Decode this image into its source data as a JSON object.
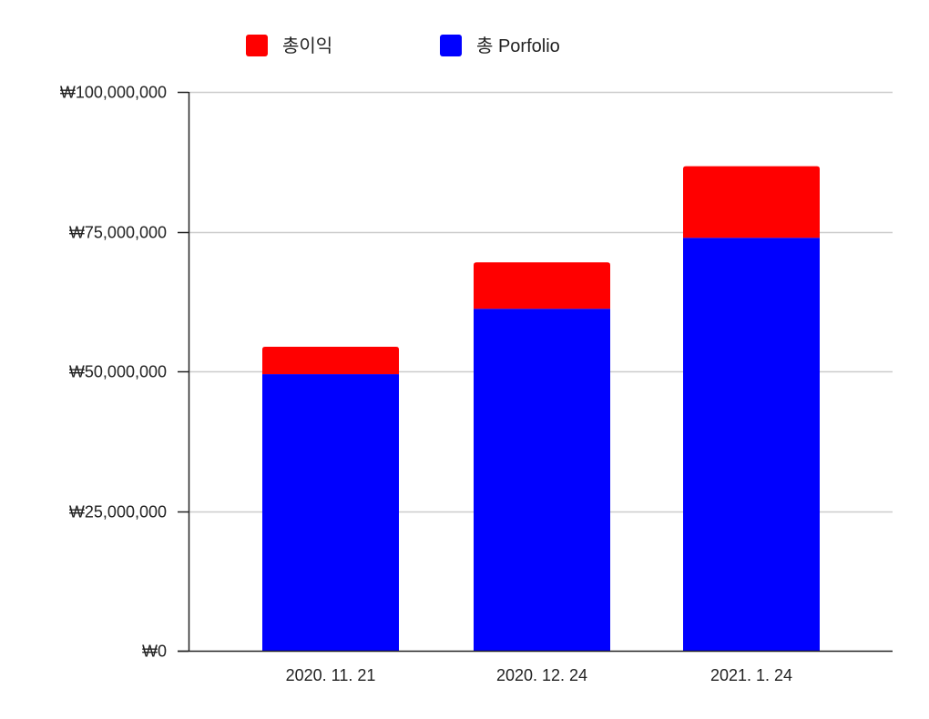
{
  "chart_data": {
    "type": "bar",
    "stacked": true,
    "categories": [
      "2020. 11. 21",
      "2020. 12. 24",
      "2021. 1. 24"
    ],
    "series": [
      {
        "name": "총 Porfolio",
        "color": "#0000ff",
        "values": [
          49500000,
          61200000,
          73900000
        ]
      },
      {
        "name": "총이익",
        "color": "#ff0000",
        "values": [
          4900000,
          8300000,
          12800000
        ]
      }
    ],
    "legend_order": [
      1,
      0
    ],
    "legend_position": "top",
    "ylim": [
      0,
      100000000
    ],
    "yticks": [
      {
        "value": 0,
        "label": "₩0"
      },
      {
        "value": 25000000,
        "label": "₩25,000,000"
      },
      {
        "value": 50000000,
        "label": "₩50,000,000"
      },
      {
        "value": 75000000,
        "label": "₩75,000,000"
      },
      {
        "value": 100000000,
        "label": "₩100,000,000"
      }
    ],
    "grid": true,
    "title": "",
    "xlabel": "",
    "ylabel": ""
  }
}
